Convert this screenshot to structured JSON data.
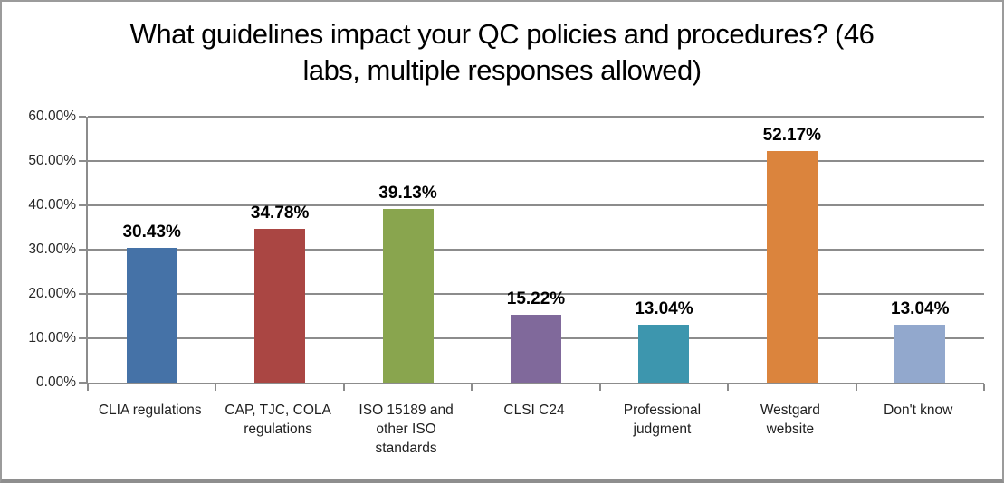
{
  "window": {
    "background": "#ffffff",
    "border_color": "#8c8c8c"
  },
  "chart_data": {
    "type": "bar",
    "title": "What guidelines impact your QC policies and procedures? (46 labs, multiple responses allowed)",
    "categories": [
      "CLIA regulations",
      "CAP, TJC, COLA\nregulations",
      "ISO 15189 and\nother ISO\nstandards",
      "CLSI C24",
      "Professional\njudgment",
      "Westgard\nwebsite",
      "Don't know"
    ],
    "values": [
      30.43,
      34.78,
      39.13,
      15.22,
      13.04,
      52.17,
      13.04
    ],
    "data_labels": [
      "30.43%",
      "34.78%",
      "39.13%",
      "15.22%",
      "13.04%",
      "52.17%",
      "13.04%"
    ],
    "bar_colors": [
      "#4572A7",
      "#AA4643",
      "#89A54E",
      "#80699B",
      "#3D96AE",
      "#DB843D",
      "#92A8CD"
    ],
    "xlabel": "",
    "ylabel": "",
    "ylim": [
      0,
      60
    ],
    "ytick_interval": 10,
    "ytick_labels": [
      "0.00%",
      "10.00%",
      "20.00%",
      "30.00%",
      "40.00%",
      "50.00%",
      "60.00%"
    ],
    "grid": "horizontal",
    "legend": "none",
    "axis_color": "#8c8c8c",
    "gridline_color": "#8c8c8c"
  }
}
